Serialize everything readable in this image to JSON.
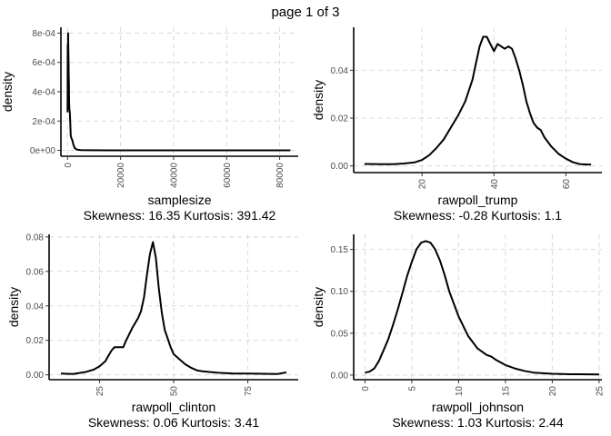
{
  "page_title": "page 1 of 3",
  "chart_data": [
    {
      "type": "line",
      "xlabel": "samplesize",
      "ylabel": "density",
      "caption": "Skewness: 16.35 Kurtosis: 391.42",
      "grid": true,
      "xlim": [
        -2500,
        87000
      ],
      "ylim": [
        -4e-05,
        0.00084
      ],
      "x_ticks": [
        0,
        20000,
        40000,
        60000,
        80000
      ],
      "x_tick_labels": [
        "0",
        "20000",
        "40000",
        "60000",
        "80000"
      ],
      "x_tick_rotation": -90,
      "y_ticks": [
        0,
        0.0002,
        0.0004,
        0.0006,
        0.0008
      ],
      "y_tick_labels": [
        "0e+00",
        "2e-04",
        "4e-04",
        "6e-04",
        "8e-04"
      ],
      "series": [
        {
          "x": [
            0,
            80,
            150,
            220,
            300,
            380,
            450,
            520,
            600,
            700,
            850,
            1000,
            1200,
            1500,
            1800,
            2200,
            2700,
            3500,
            5000,
            8000,
            15000,
            30000,
            50000,
            70000,
            84000
          ],
          "y": [
            0.00026,
            0.00072,
            0.00048,
            0.0008,
            0.00068,
            0.0006,
            0.0005,
            0.00046,
            0.00034,
            0.00028,
            0.00026,
            0.0002,
            0.0001,
            8e-05,
            7e-05,
            4e-05,
            1.5e-05,
            5e-06,
            2e-06,
            1e-06,
            5e-07,
            3e-07,
            2e-07,
            1e-07,
            1e-07
          ]
        }
      ]
    },
    {
      "type": "line",
      "xlabel": "rawpoll_trump",
      "ylabel": "density",
      "caption": "Skewness: -0.28 Kurtosis: 1.1",
      "grid": true,
      "xlim": [
        1,
        70
      ],
      "ylim": [
        -0.0028,
        0.058
      ],
      "x_ticks": [
        20,
        40,
        60
      ],
      "x_tick_labels": [
        "20",
        "40",
        "60"
      ],
      "x_tick_rotation": -90,
      "y_ticks": [
        0,
        0.02,
        0.04
      ],
      "y_tick_labels": [
        "0.00",
        "0.02",
        "0.04"
      ],
      "series": [
        {
          "x": [
            4,
            8,
            12,
            15,
            18,
            20,
            22,
            24,
            26,
            28,
            30,
            32,
            34,
            35,
            36,
            37,
            38,
            39,
            40,
            41,
            42,
            43,
            44,
            45,
            46,
            47,
            48,
            49,
            50,
            51,
            52,
            53,
            54,
            56,
            58,
            60,
            62,
            64,
            67
          ],
          "y": [
            0.0008,
            0.0007,
            0.0007,
            0.001,
            0.0015,
            0.0025,
            0.0045,
            0.0075,
            0.011,
            0.016,
            0.021,
            0.027,
            0.036,
            0.043,
            0.05,
            0.054,
            0.054,
            0.051,
            0.048,
            0.051,
            0.05,
            0.049,
            0.05,
            0.049,
            0.045,
            0.04,
            0.034,
            0.027,
            0.022,
            0.018,
            0.016,
            0.015,
            0.012,
            0.008,
            0.005,
            0.003,
            0.0015,
            0.0007,
            0.0005
          ]
        }
      ]
    },
    {
      "type": "line",
      "xlabel": "rawpoll_clinton",
      "ylabel": "density",
      "caption": "Skewness: 0.06 Kurtosis: 3.41",
      "grid": true,
      "xlim": [
        8,
        92
      ],
      "ylim": [
        -0.0028,
        0.0815
      ],
      "x_ticks": [
        25,
        50,
        75
      ],
      "x_tick_labels": [
        "25",
        "50",
        "75"
      ],
      "x_tick_rotation": -90,
      "y_ticks": [
        0,
        0.02,
        0.04,
        0.06,
        0.08
      ],
      "y_tick_labels": [
        "0.00",
        "0.02",
        "0.04",
        "0.06",
        "0.08"
      ],
      "series": [
        {
          "x": [
            12,
            16,
            20,
            23,
            25,
            27,
            28,
            29,
            30,
            32,
            33,
            34,
            36,
            38,
            39,
            40,
            41,
            42,
            43,
            44,
            45,
            46,
            47,
            48,
            49,
            50,
            52,
            54,
            56,
            58,
            60,
            65,
            70,
            75,
            80,
            85,
            88
          ],
          "y": [
            0.0008,
            0.0005,
            0.0015,
            0.003,
            0.005,
            0.008,
            0.011,
            0.014,
            0.016,
            0.016,
            0.016,
            0.02,
            0.027,
            0.033,
            0.037,
            0.045,
            0.058,
            0.07,
            0.077,
            0.068,
            0.05,
            0.036,
            0.026,
            0.021,
            0.016,
            0.012,
            0.009,
            0.006,
            0.004,
            0.0025,
            0.002,
            0.0012,
            0.0008,
            0.0008,
            0.0006,
            0.0005,
            0.0014
          ]
        }
      ]
    },
    {
      "type": "line",
      "xlabel": "rawpoll_johnson",
      "ylabel": "density",
      "caption": "Skewness: 1.03 Kurtosis: 2.44",
      "grid": true,
      "xlim": [
        -1.2,
        25.3
      ],
      "ylim": [
        -0.0055,
        0.168
      ],
      "x_ticks": [
        0,
        5,
        10,
        15,
        20,
        25
      ],
      "x_tick_labels": [
        "0",
        "5",
        "10",
        "15",
        "20",
        "25"
      ],
      "x_tick_rotation": -90,
      "y_ticks": [
        0,
        0.05,
        0.1,
        0.15
      ],
      "y_tick_labels": [
        "0.00",
        "0.05",
        "0.10",
        "0.15"
      ],
      "series": [
        {
          "x": [
            0,
            0.5,
            1,
            1.5,
            2,
            2.5,
            3,
            3.5,
            4,
            4.5,
            5,
            5.5,
            6,
            6.5,
            7,
            7.5,
            8,
            8.5,
            9,
            9.5,
            10,
            11,
            12,
            13,
            13.5,
            14,
            15,
            16,
            17,
            18,
            20,
            22,
            25
          ],
          "y": [
            0.003,
            0.004,
            0.008,
            0.017,
            0.03,
            0.043,
            0.06,
            0.078,
            0.098,
            0.118,
            0.135,
            0.15,
            0.158,
            0.16,
            0.158,
            0.15,
            0.137,
            0.12,
            0.1,
            0.085,
            0.07,
            0.047,
            0.032,
            0.024,
            0.022,
            0.018,
            0.012,
            0.008,
            0.005,
            0.003,
            0.0015,
            0.001,
            0.0008
          ]
        }
      ]
    }
  ]
}
